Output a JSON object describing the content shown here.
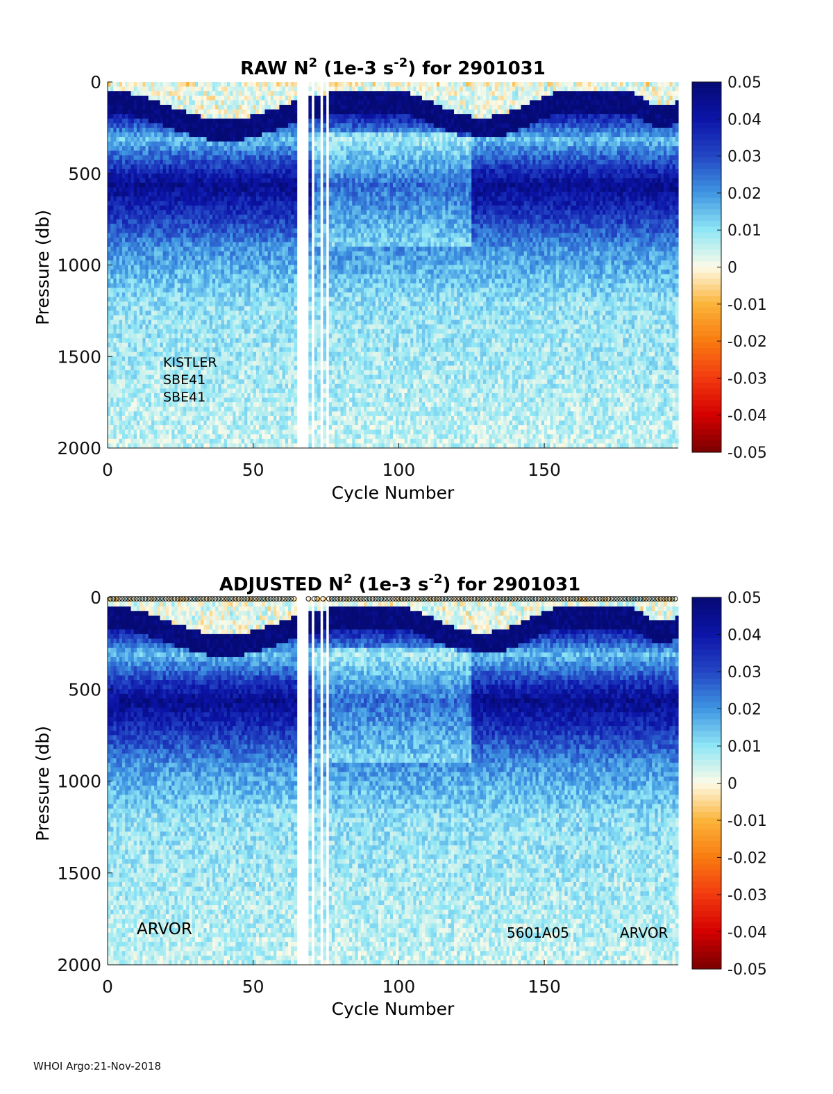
{
  "footer": "WHOI Argo:21-Nov-2018",
  "colorbar": {
    "ticks": [
      "0.05",
      "0.04",
      "0.03",
      "0.02",
      "0.01",
      "0",
      "-0.01",
      "-0.02",
      "-0.03",
      "-0.04",
      "-0.05"
    ],
    "range": [
      -0.05,
      0.05
    ],
    "colormap": [
      {
        "v": -0.05,
        "color": "#7a0000"
      },
      {
        "v": -0.04,
        "color": "#d40000"
      },
      {
        "v": -0.03,
        "color": "#f23a10"
      },
      {
        "v": -0.02,
        "color": "#f97b10"
      },
      {
        "v": -0.01,
        "color": "#fbb43a"
      },
      {
        "v": 0.0,
        "color": "#fdfbe8"
      },
      {
        "v": 0.01,
        "color": "#8fe6f5"
      },
      {
        "v": 0.02,
        "color": "#3f96e2"
      },
      {
        "v": 0.03,
        "color": "#2346c4"
      },
      {
        "v": 0.04,
        "color": "#0c14a8"
      },
      {
        "v": 0.05,
        "color": "#050a74"
      }
    ]
  },
  "chart_data": [
    {
      "type": "heatmap",
      "title_prefix": "RAW N",
      "title_sup1": "2",
      "title_mid": " (1e-3 s",
      "title_sup2": "-2",
      "title_suffix": ") for 2901031",
      "xlabel": "Cycle Number",
      "ylabel": "Pressure (db)",
      "xlim": [
        0,
        196
      ],
      "ylim": [
        0,
        2000
      ],
      "xticks": [
        "0",
        "50",
        "100",
        "150"
      ],
      "yticks": [
        "0",
        "500",
        "1000",
        "1500",
        "2000"
      ],
      "clim": [
        -0.05,
        0.05
      ],
      "annotations": [
        "KISTLER",
        "SBE41",
        "SBE41"
      ],
      "missing_cycles": [
        65,
        66,
        67,
        68,
        70,
        73,
        75
      ],
      "value_profile": [
        {
          "pressure": 0,
          "n2": 0.0
        },
        {
          "pressure": 100,
          "n2": 0.05
        },
        {
          "pressure": 300,
          "n2": 0.015
        },
        {
          "pressure": 550,
          "n2": 0.045
        },
        {
          "pressure": 900,
          "n2": 0.02
        },
        {
          "pressure": 1200,
          "n2": 0.01
        },
        {
          "pressure": 2000,
          "n2": 0.005
        }
      ]
    },
    {
      "type": "heatmap",
      "title_prefix": "ADJUSTED N",
      "title_sup1": "2",
      "title_mid": " (1e-3 s",
      "title_sup2": "-2",
      "title_suffix": ") for 2901031",
      "xlabel": "Cycle Number",
      "ylabel": "Pressure (db)",
      "xlim": [
        0,
        196
      ],
      "ylim": [
        0,
        2000
      ],
      "xticks": [
        "0",
        "50",
        "100",
        "150"
      ],
      "yticks": [
        "0",
        "500",
        "1000",
        "1500",
        "2000"
      ],
      "clim": [
        -0.05,
        0.05
      ],
      "annotations": [
        "ARVOR",
        "5601A05",
        "ARVOR"
      ],
      "missing_cycles": [
        65,
        66,
        67,
        68,
        70,
        73,
        75
      ],
      "value_profile": [
        {
          "pressure": 0,
          "n2": 0.0
        },
        {
          "pressure": 100,
          "n2": 0.05
        },
        {
          "pressure": 300,
          "n2": 0.015
        },
        {
          "pressure": 550,
          "n2": 0.045
        },
        {
          "pressure": 900,
          "n2": 0.02
        },
        {
          "pressure": 1200,
          "n2": 0.01
        },
        {
          "pressure": 2000,
          "n2": 0.005
        }
      ]
    }
  ]
}
